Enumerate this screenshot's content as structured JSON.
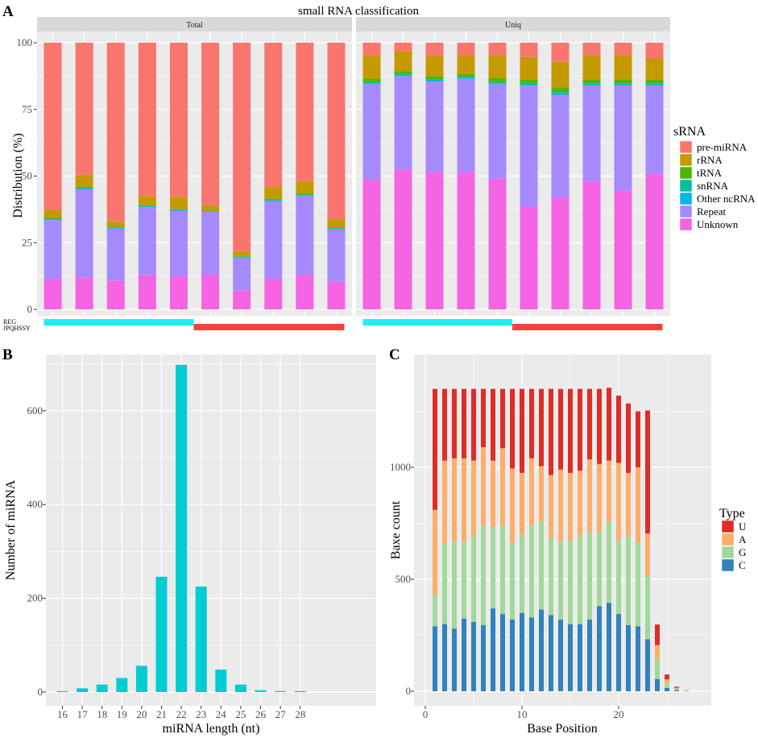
{
  "colors": {
    "panel_bg": "#ebebeb",
    "grid": "#ffffff",
    "strip_bg": "#d9d9d9",
    "cyan": "#00cdd2",
    "group_reg": "#1ff0f5",
    "group_jpq": "#f5413c"
  },
  "chart_data": [
    {
      "id": "A",
      "panel_letter": "A",
      "type": "bar",
      "stacked": true,
      "title": "small RNA classification",
      "ylabel": "Distribution (%)",
      "ylim": [
        0,
        100
      ],
      "yticks": [
        0,
        25,
        50,
        75,
        100
      ],
      "legend_title": "sRNA",
      "legend_position": "right",
      "group_labels": [
        "REG",
        "JPQHSSY"
      ],
      "group_colors": [
        "#1ff0f5",
        "#f5413c"
      ],
      "series": [
        {
          "name": "Unknown",
          "color": "#f564e3"
        },
        {
          "name": "Repeat",
          "color": "#a58afe"
        },
        {
          "name": "Other ncRNA",
          "color": "#00b5ed"
        },
        {
          "name": "snRNA",
          "color": "#00c19c"
        },
        {
          "name": "tRNA",
          "color": "#53b400"
        },
        {
          "name": "rRNA",
          "color": "#c49a00"
        },
        {
          "name": "pre-miRNA",
          "color": "#f8766d"
        }
      ],
      "legend_order": [
        "pre-miRNA",
        "rRNA",
        "tRNA",
        "snRNA",
        "Other ncRNA",
        "Repeat",
        "Unknown"
      ],
      "facets": [
        {
          "label": "Total",
          "samples": 10,
          "stacks": [
            [
              11.5,
              22,
              0.3,
              0.2,
              0.3,
              3,
              62.7
            ],
            [
              12,
              33,
              0.4,
              0.2,
              0.4,
              4.5,
              49.5
            ],
            [
              10.8,
              19.5,
              0.3,
              0.2,
              0.2,
              2,
              67
            ],
            [
              12.8,
              25.5,
              0.3,
              0.2,
              0.2,
              3.5,
              57.5
            ],
            [
              12.5,
              24.5,
              0.3,
              0.2,
              0.2,
              4.5,
              57.8
            ],
            [
              13,
              23.5,
              0.2,
              0.1,
              0.2,
              2,
              61
            ],
            [
              7,
              12.5,
              0.2,
              0.1,
              0.2,
              1.8,
              78.2
            ],
            [
              11.5,
              29,
              0.3,
              0.2,
              0.4,
              4.5,
              54.1
            ],
            [
              13,
              29.5,
              0.3,
              0.2,
              0.5,
              4.5,
              52
            ],
            [
              10.5,
              19.5,
              0.3,
              0.2,
              0.2,
              3,
              66.3
            ]
          ]
        },
        {
          "label": "Uniq",
          "samples": 10,
          "stacks": [
            [
              48.5,
              36,
              0.3,
              0.5,
              1.3,
              8.5,
              4.9
            ],
            [
              52.5,
              35,
              0.3,
              0.5,
              1,
              7.5,
              3.2
            ],
            [
              51.5,
              34,
              0.3,
              0.5,
              1.2,
              7.5,
              5
            ],
            [
              51.5,
              35,
              0.3,
              0.5,
              1,
              7,
              4.7
            ],
            [
              49,
              35.5,
              0.3,
              0.5,
              1.5,
              8.5,
              4.7
            ],
            [
              38.5,
              45.5,
              0.3,
              0.6,
              1.2,
              8.5,
              5.4
            ],
            [
              42,
              38.5,
              0.3,
              0.7,
              1.8,
              9.5,
              7.2
            ],
            [
              48,
              36,
              0.3,
              0.5,
              1.5,
              9,
              4.7
            ],
            [
              44.5,
              39.5,
              0.3,
              0.5,
              1.5,
              9,
              4.7
            ],
            [
              51,
              33,
              0.3,
              0.5,
              1.3,
              8,
              5.9
            ]
          ]
        }
      ]
    },
    {
      "id": "B",
      "panel_letter": "B",
      "type": "bar",
      "xlabel": "miRNA length (nt)",
      "ylabel": "Number of miRNA",
      "ylim": [
        0,
        720
      ],
      "yticks": [
        0,
        200,
        400,
        600
      ],
      "categories": [
        "16",
        "17",
        "18",
        "19",
        "20",
        "21",
        "22",
        "23",
        "24",
        "25",
        "26",
        "27",
        "28"
      ],
      "values": [
        2,
        8,
        16,
        30,
        56,
        246,
        698,
        225,
        48,
        16,
        4,
        2,
        2
      ]
    },
    {
      "id": "C",
      "panel_letter": "C",
      "type": "bar",
      "stacked": true,
      "xlabel": "Base Position",
      "ylabel": "Baxe count",
      "xlim": [
        -0.6,
        28.6
      ],
      "xticks": [
        0,
        10,
        20
      ],
      "ylim": [
        0,
        1420
      ],
      "yticks": [
        0,
        500,
        1000
      ],
      "legend_title": "Type",
      "legend_position": "right",
      "legend_order": [
        "U",
        "A",
        "G",
        "C"
      ],
      "series": [
        {
          "name": "C",
          "color": "#3182bd"
        },
        {
          "name": "G",
          "color": "#a1d99b"
        },
        {
          "name": "A",
          "color": "#fdae6b"
        },
        {
          "name": "U",
          "color": "#de2d26"
        }
      ],
      "positions": [
        1,
        2,
        3,
        4,
        5,
        6,
        7,
        8,
        9,
        10,
        11,
        12,
        13,
        14,
        15,
        16,
        17,
        18,
        19,
        20,
        21,
        22,
        23,
        24,
        25,
        26,
        27
      ],
      "stacks": [
        [
          290,
          140,
          380,
          540
        ],
        [
          300,
          360,
          370,
          320
        ],
        [
          280,
          390,
          370,
          310
        ],
        [
          325,
          345,
          370,
          310
        ],
        [
          310,
          385,
          335,
          320
        ],
        [
          295,
          445,
          350,
          260
        ],
        [
          370,
          365,
          295,
          320
        ],
        [
          345,
          395,
          345,
          265
        ],
        [
          320,
          345,
          330,
          355
        ],
        [
          350,
          345,
          280,
          375
        ],
        [
          330,
          410,
          300,
          310
        ],
        [
          365,
          395,
          245,
          345
        ],
        [
          340,
          340,
          285,
          385
        ],
        [
          320,
          350,
          320,
          360
        ],
        [
          300,
          375,
          300,
          375
        ],
        [
          300,
          395,
          290,
          365
        ],
        [
          320,
          390,
          325,
          315
        ],
        [
          380,
          330,
          305,
          335
        ],
        [
          395,
          360,
          275,
          325
        ],
        [
          345,
          330,
          345,
          300
        ],
        [
          295,
          395,
          285,
          310
        ],
        [
          290,
          375,
          335,
          250
        ],
        [
          232,
          282,
          190,
          550
        ],
        [
          55,
          88,
          63,
          92
        ],
        [
          15,
          20,
          18,
          22
        ],
        [
          5,
          5,
          5,
          5
        ],
        [
          1,
          1,
          1,
          1
        ]
      ]
    }
  ]
}
